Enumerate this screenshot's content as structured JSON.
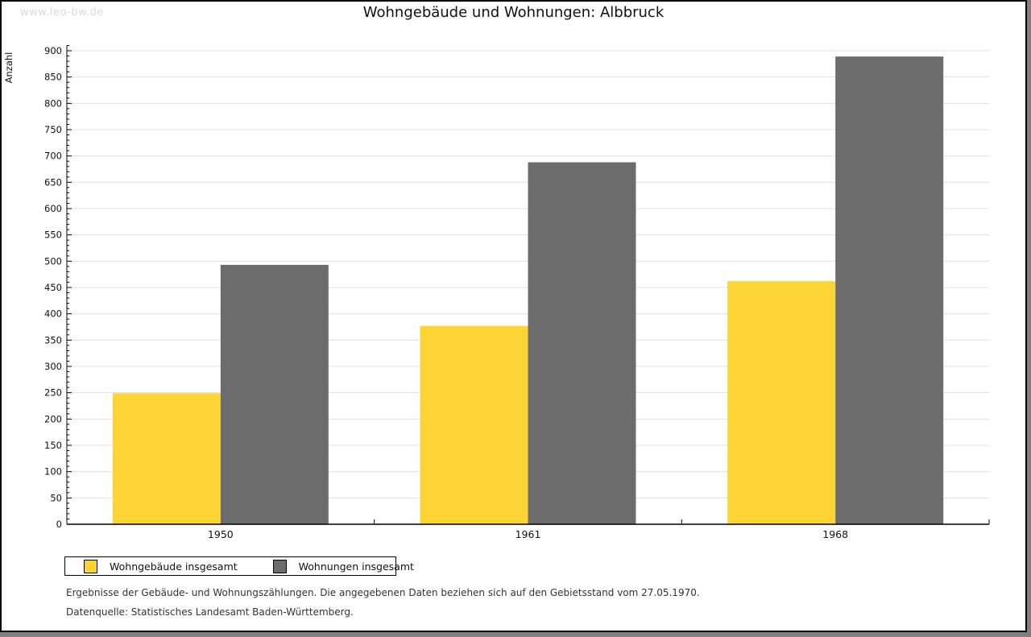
{
  "page": {
    "watermark": "www.leo-bw.de",
    "background_color": "#808080",
    "canvas_color": "#ffffff"
  },
  "chart_data": {
    "type": "bar",
    "title": "Wohngebäude und Wohnungen: Albbruck",
    "xlabel": "",
    "ylabel": "Anzahl",
    "categories": [
      "1950",
      "1961",
      "1968"
    ],
    "series": [
      {
        "name": "Wohngebäude insgesamt",
        "color": "#FCD535",
        "values": [
          249,
          377,
          462
        ]
      },
      {
        "name": "Wohnungen insgesamt",
        "color": "#6C6C6C",
        "values": [
          493,
          688,
          889
        ]
      }
    ],
    "ylim": [
      0,
      900
    ],
    "ytick_step": 50,
    "yminor_step": 10,
    "ytick_labels": [
      "0",
      "50",
      "100",
      "150",
      "200",
      "250",
      "300",
      "350",
      "400",
      "450",
      "500",
      "550",
      "600",
      "650",
      "700",
      "750",
      "800",
      "850",
      "900"
    ],
    "grid": "horizontal",
    "gridline_color": "#E0E0E0",
    "axis_color": "#000000",
    "legend_position": "bottom-left"
  },
  "notes": {
    "line1": "Ergebnisse der Gebäude- und Wohnungszählungen. Die angegebenen Daten beziehen sich auf den Gebietsstand vom 27.05.1970.",
    "line2": "Datenquelle: Statistisches Landesamt Baden-Württemberg."
  }
}
